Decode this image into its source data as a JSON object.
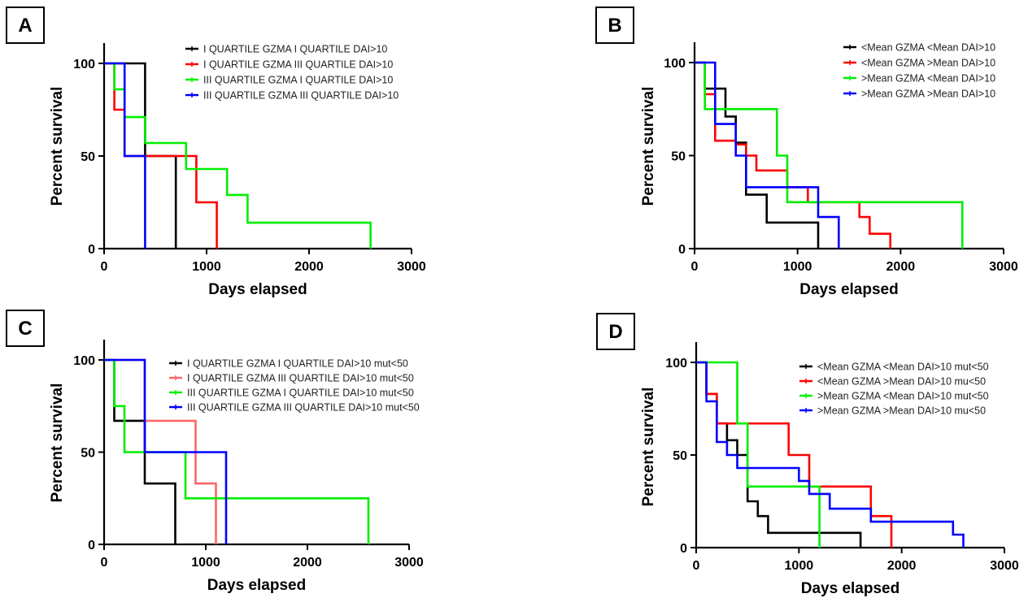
{
  "chart_data": [
    {
      "panel": "A",
      "type": "line",
      "xlabel": "Days elapsed",
      "ylabel": "Percent survival",
      "xlim": [
        0,
        3000
      ],
      "ylim": [
        0,
        100
      ],
      "xticks": [
        0,
        1000,
        2000,
        3000
      ],
      "yticks": [
        0,
        50,
        100
      ],
      "legend_placement": "top-right",
      "series": [
        {
          "name": "I QUARTILE GZMA I QUARTILE DAI>10",
          "color": "#000000",
          "x": [
            0,
            400,
            400,
            700,
            700
          ],
          "y": [
            100,
            100,
            50,
            50,
            0
          ]
        },
        {
          "name": "I QUARTILE GZMA III QUARTILE DAI>10",
          "color": "#ff0000",
          "x": [
            0,
            100,
            100,
            200,
            200,
            900,
            900,
            1100,
            1100
          ],
          "y": [
            100,
            100,
            75,
            75,
            50,
            50,
            25,
            25,
            0
          ]
        },
        {
          "name": "III QUARTILE GZMA I QUARTILE DAI>10",
          "color": "#00ee00",
          "x": [
            0,
            100,
            100,
            200,
            200,
            400,
            400,
            800,
            800,
            1200,
            1200,
            1400,
            1400,
            2600,
            2600
          ],
          "y": [
            100,
            100,
            86,
            86,
            71,
            71,
            57,
            57,
            43,
            43,
            29,
            29,
            14,
            14,
            0
          ]
        },
        {
          "name": "III QUARTILE GZMA III QUARTILE DAI>10",
          "color": "#0000ff",
          "x": [
            0,
            200,
            200,
            400,
            400
          ],
          "y": [
            100,
            100,
            50,
            50,
            0
          ]
        }
      ]
    },
    {
      "panel": "B",
      "type": "line",
      "xlabel": "Days elapsed",
      "ylabel": "Percent survival",
      "xlim": [
        0,
        3000
      ],
      "ylim": [
        0,
        100
      ],
      "xticks": [
        0,
        1000,
        2000,
        3000
      ],
      "yticks": [
        0,
        50,
        100
      ],
      "legend_placement": "top-right",
      "series": [
        {
          "name": "<Mean GZMA <Mean DAI>10",
          "color": "#000000",
          "x": [
            0,
            100,
            100,
            300,
            300,
            400,
            400,
            500,
            500,
            700,
            700,
            1200,
            1200
          ],
          "y": [
            100,
            100,
            86,
            86,
            71,
            71,
            57,
            57,
            29,
            29,
            14,
            14,
            0
          ]
        },
        {
          "name": "<Mean GZMA >Mean DAI>10",
          "color": "#ff0000",
          "x": [
            0,
            100,
            100,
            200,
            200,
            400,
            400,
            500,
            500,
            600,
            600,
            900,
            900,
            1100,
            1100,
            1600,
            1600,
            1700,
            1700,
            1900,
            1900
          ],
          "y": [
            100,
            100,
            83,
            83,
            58,
            58,
            56,
            56,
            50,
            50,
            42,
            42,
            33,
            33,
            25,
            25,
            17,
            17,
            8,
            8,
            0
          ]
        },
        {
          "name": ">Mean GZMA <Mean DAI>10",
          "color": "#00ee00",
          "x": [
            0,
            100,
            100,
            800,
            800,
            900,
            900,
            2600,
            2600
          ],
          "y": [
            100,
            100,
            75,
            75,
            50,
            50,
            25,
            25,
            0
          ]
        },
        {
          "name": ">Mean GZMA >Mean DAI>10",
          "color": "#0000ff",
          "x": [
            0,
            200,
            200,
            400,
            400,
            500,
            500,
            1200,
            1200,
            1400,
            1400
          ],
          "y": [
            100,
            100,
            67,
            67,
            50,
            50,
            33,
            33,
            17,
            17,
            0
          ]
        }
      ]
    },
    {
      "panel": "C",
      "type": "line",
      "xlabel": "Days elapsed",
      "ylabel": "Percent survival",
      "xlim": [
        0,
        3000
      ],
      "ylim": [
        0,
        100
      ],
      "xticks": [
        0,
        1000,
        2000,
        3000
      ],
      "yticks": [
        0,
        50,
        100
      ],
      "legend_placement": "top-right",
      "series": [
        {
          "name": "I QUARTILE GZMA I QUARTILE DAI>10 mut<50",
          "color": "#000000",
          "x": [
            0,
            100,
            100,
            400,
            400,
            700,
            700
          ],
          "y": [
            100,
            100,
            67,
            67,
            33,
            33,
            0
          ]
        },
        {
          "name": "I QUARTILE GZMA III QUARTILE DAI>10 mut<50",
          "color": "#ff6666",
          "x": [
            0,
            400,
            400,
            900,
            900,
            1100,
            1100
          ],
          "y": [
            100,
            100,
            67,
            67,
            33,
            33,
            0
          ]
        },
        {
          "name": "III QUARTILE GZMA I QUARTILE DAI>10 mut<50",
          "color": "#00ee00",
          "x": [
            0,
            100,
            100,
            200,
            200,
            800,
            800,
            2600,
            2600
          ],
          "y": [
            100,
            100,
            75,
            75,
            50,
            50,
            25,
            25,
            0
          ]
        },
        {
          "name": "III QUARTILE GZMA III QUARTILE DAI>10 mut<50",
          "color": "#0000ff",
          "x": [
            0,
            400,
            400,
            1200,
            1200
          ],
          "y": [
            100,
            100,
            50,
            50,
            0
          ]
        }
      ]
    },
    {
      "panel": "D",
      "type": "line",
      "xlabel": "Days elapsed",
      "ylabel": "Percent survival",
      "xlim": [
        0,
        3000
      ],
      "ylim": [
        0,
        100
      ],
      "xticks": [
        0,
        1000,
        2000,
        3000
      ],
      "yticks": [
        0,
        50,
        100
      ],
      "legend_placement": "top-right",
      "series": [
        {
          "name": "<Mean GZMA <Mean DAI>10 mut<50",
          "color": "#000000",
          "x": [
            0,
            100,
            100,
            200,
            200,
            300,
            300,
            400,
            400,
            500,
            500,
            600,
            600,
            700,
            700,
            1600,
            1600
          ],
          "y": [
            100,
            100,
            83,
            83,
            67,
            67,
            58,
            58,
            50,
            50,
            25,
            25,
            17,
            17,
            8,
            8,
            0
          ]
        },
        {
          "name": "<Mean GZMA >Mean DAI>10 mu<50",
          "color": "#ff0000",
          "x": [
            0,
            100,
            100,
            200,
            200,
            900,
            900,
            1100,
            1100,
            1700,
            1700,
            1900,
            1900
          ],
          "y": [
            100,
            100,
            83,
            83,
            67,
            67,
            50,
            50,
            33,
            33,
            17,
            17,
            0
          ]
        },
        {
          "name": ">Mean GZMA <Mean DAI>10 mut<50",
          "color": "#00ee00",
          "x": [
            0,
            400,
            400,
            500,
            500,
            1200,
            1200
          ],
          "y": [
            100,
            100,
            67,
            67,
            33,
            33,
            0
          ]
        },
        {
          "name": ">Mean GZMA >Mean DAI>10 mu<50",
          "color": "#0000ff",
          "x": [
            0,
            100,
            100,
            200,
            200,
            300,
            300,
            400,
            400,
            1000,
            1000,
            1100,
            1100,
            1300,
            1300,
            1700,
            1700,
            2500,
            2500,
            2600,
            2600
          ],
          "y": [
            100,
            100,
            79,
            79,
            57,
            57,
            50,
            50,
            43,
            43,
            36,
            36,
            29,
            29,
            21,
            21,
            14,
            14,
            7,
            7,
            0
          ]
        }
      ]
    }
  ]
}
